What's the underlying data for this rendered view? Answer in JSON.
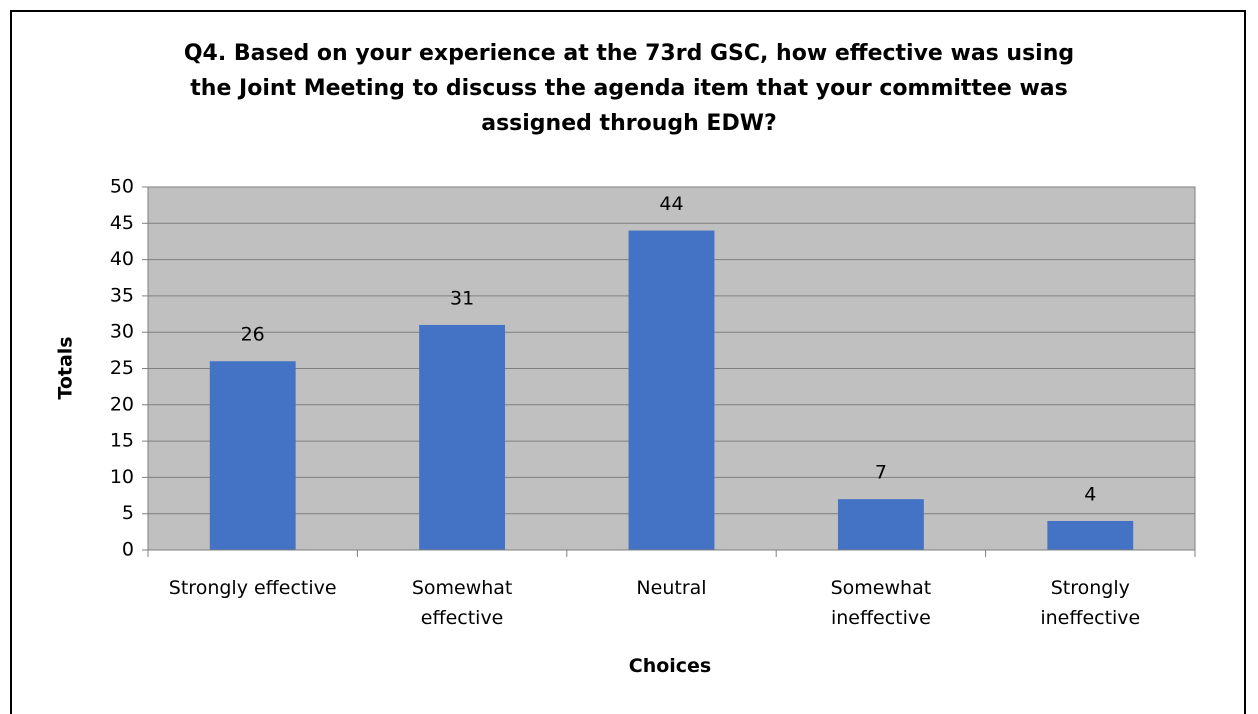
{
  "chart_data": {
    "type": "bar",
    "title": "Q4. Based on your experience at the 73rd GSC, how effective was using\nthe Joint Meeting to discuss the agenda item that your committee was\nassigned through  EDW?",
    "xlabel": "Choices",
    "ylabel": "Totals",
    "categories": [
      "Strongly effective",
      "Somewhat\neffective",
      "Neutral",
      "Somewhat\nineffective",
      "Strongly\nineffective"
    ],
    "values": [
      26,
      31,
      44,
      7,
      4
    ],
    "color": "#4472c4",
    "ylim": [
      0,
      50
    ],
    "yticks": [
      0,
      5,
      10,
      15,
      20,
      25,
      30,
      35,
      40,
      45,
      50
    ],
    "grid": true
  }
}
